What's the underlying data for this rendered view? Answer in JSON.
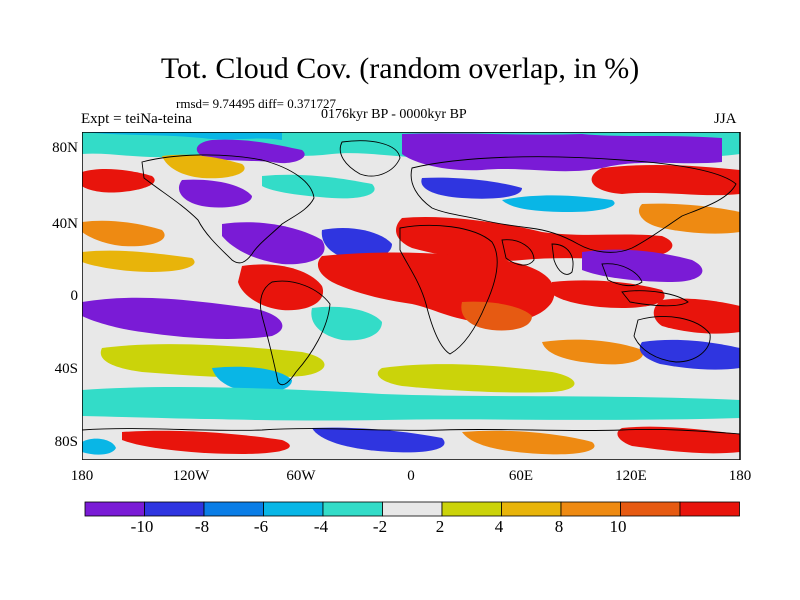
{
  "header": {
    "title": "Tot. Cloud Cov. (random overlap, in %)",
    "stats": "rmsd= 9.74495 diff= 0.371727",
    "periods": "0176kyr BP - 0000kyr BP",
    "experiment": "Expt = teiNa-teina",
    "season": "JJA"
  },
  "axes": {
    "x_ticks": [
      "180",
      "120W",
      "60W",
      "0",
      "60E",
      "120E",
      "180"
    ],
    "y_ticks": [
      "80N",
      "40N",
      "0",
      "40S",
      "80S"
    ]
  },
  "colorbar": {
    "colors": [
      "#7a1bd6",
      "#2f35e0",
      "#0a7de6",
      "#09b6e6",
      "#33dcc8",
      "#e8e8e8",
      "#cbd30a",
      "#e8b40a",
      "#ee8a12",
      "#e65a12",
      "#e8140c"
    ],
    "labels": [
      "-10",
      "-8",
      "-6",
      "-4",
      "-2",
      "2",
      "4",
      "8",
      "10"
    ]
  },
  "map": {
    "projection": "cylindrical equidistant",
    "lon_range": [
      -180,
      180
    ],
    "lat_range": [
      -90,
      90
    ],
    "field": "total cloud cover difference (%)",
    "land_outline_color": "#000000"
  }
}
